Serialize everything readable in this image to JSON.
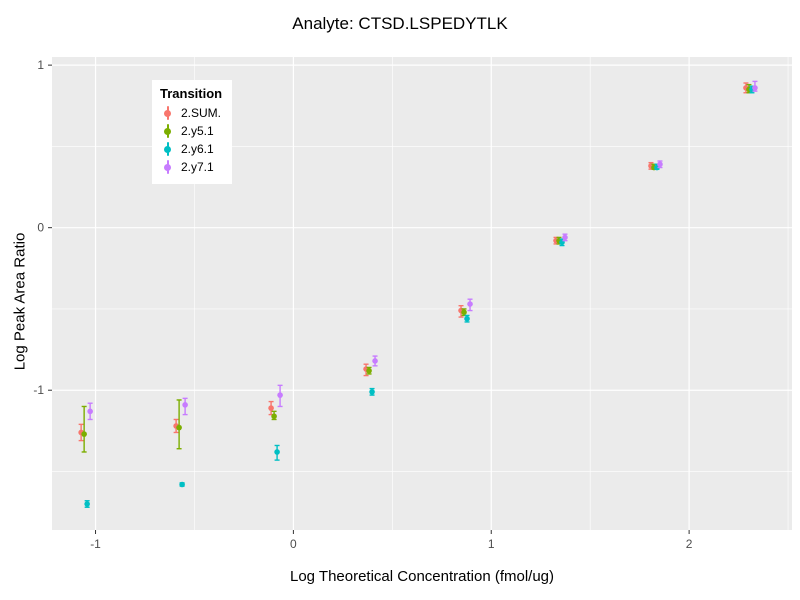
{
  "title": "Analyte: CTSD.LSPEDYTLK",
  "chart_data": {
    "type": "scatter",
    "title": "Analyte: CTSD.LSPEDYTLK",
    "xlabel": "Log Theoretical Concentration (fmol/ug)",
    "ylabel": "Log Peak Area Ratio",
    "xlim": [
      -1.22,
      2.52
    ],
    "ylim": [
      -1.86,
      1.05
    ],
    "x_ticks": [
      -1,
      0,
      1,
      2
    ],
    "y_ticks": [
      -1,
      0,
      1
    ],
    "x_minor_ticks": [
      -0.5,
      0.5,
      1.5,
      2.5
    ],
    "y_minor_ticks": [
      -1.5,
      -0.5,
      0.5
    ],
    "grid": "on",
    "panel_bg": "#EBEBEB",
    "grid_color": "#FFFFFF",
    "tick_label_color": "#4d4d4d",
    "legend_title": "Transition",
    "legend_position": "inside-top-left",
    "x": [
      -1.05,
      -0.57,
      -0.09,
      0.39,
      0.87,
      1.35,
      1.83,
      2.31
    ],
    "series": [
      {
        "name": "2.SUM.",
        "color": "#F8766D",
        "y": [
          -1.26,
          -1.22,
          -1.11,
          -0.87,
          -0.51,
          -0.08,
          0.38,
          0.86
        ],
        "ymin": [
          -1.31,
          -1.26,
          -1.15,
          -0.91,
          -0.55,
          -0.1,
          0.36,
          0.83
        ],
        "ymax": [
          -1.21,
          -1.18,
          -1.07,
          -0.84,
          -0.48,
          -0.06,
          0.4,
          0.89
        ]
      },
      {
        "name": "2.y5.1",
        "color": "#7CAE00",
        "y": [
          -1.27,
          -1.23,
          -1.16,
          -0.88,
          -0.52,
          -0.08,
          0.37,
          0.85
        ],
        "ymin": [
          -1.38,
          -1.36,
          -1.18,
          -0.9,
          -0.54,
          -0.1,
          0.36,
          0.83
        ],
        "ymax": [
          -1.1,
          -1.06,
          -1.13,
          -0.86,
          -0.5,
          -0.06,
          0.39,
          0.88
        ]
      },
      {
        "name": "2.y6.1",
        "color": "#00BFC4",
        "y": [
          -1.7,
          -1.58,
          -1.38,
          -1.01,
          -0.56,
          -0.09,
          0.37,
          0.85
        ],
        "ymin": [
          -1.72,
          -1.59,
          -1.43,
          -1.03,
          -0.58,
          -0.11,
          0.36,
          0.83
        ],
        "ymax": [
          -1.68,
          -1.57,
          -1.34,
          -0.99,
          -0.54,
          -0.07,
          0.39,
          0.87
        ]
      },
      {
        "name": "2.y7.1",
        "color": "#C77CFF",
        "y": [
          -1.13,
          -1.09,
          -1.03,
          -0.82,
          -0.47,
          -0.06,
          0.39,
          0.86
        ],
        "ymin": [
          -1.18,
          -1.15,
          -1.1,
          -0.85,
          -0.51,
          -0.08,
          0.37,
          0.84
        ],
        "ymax": [
          -1.08,
          -1.05,
          -0.97,
          -0.79,
          -0.44,
          -0.04,
          0.41,
          0.9
        ]
      }
    ]
  }
}
